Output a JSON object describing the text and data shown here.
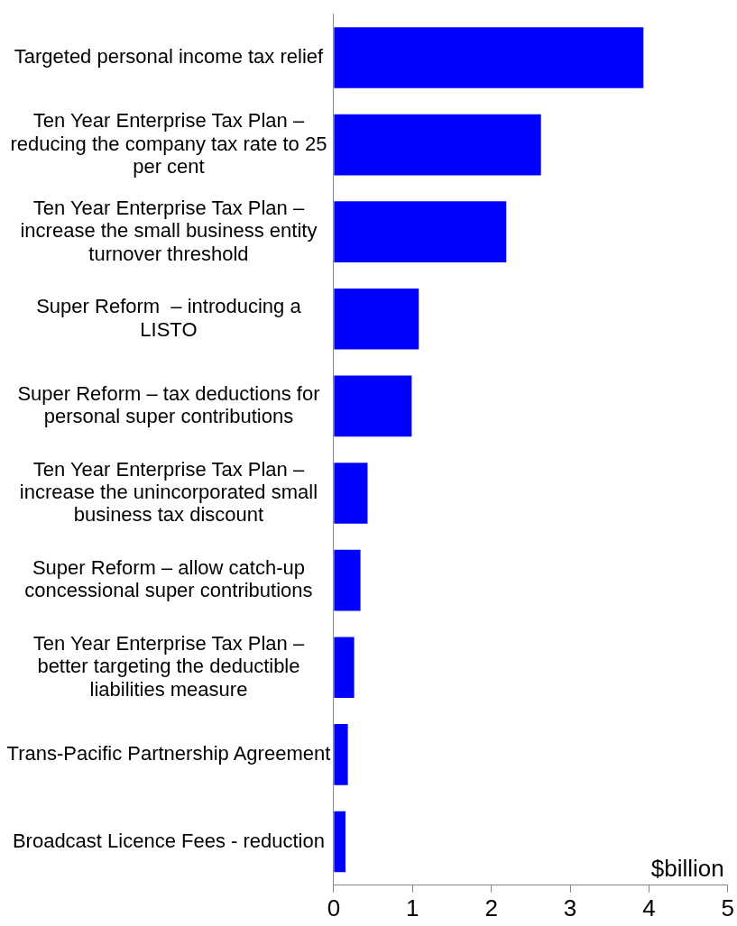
{
  "chart_data": {
    "type": "bar",
    "orientation": "horizontal",
    "xlabel": "$billion",
    "categories": [
      "Targeted personal income tax relief",
      "Ten Year Enterprise Tax Plan – reducing the company tax rate to 25 per cent",
      "Ten Year Enterprise Tax Plan – increase the small business entity turnover threshold",
      "Super Reform  – introducing a LISTO",
      "Super Reform – tax deductions for personal super contributions",
      "Ten Year Enterprise Tax Plan – increase the unincorporated small business tax discount",
      "Super Reform – allow catch-up concessional super contributions",
      "Ten Year Enterprise Tax Plan – better targeting the deductible liabilities measure",
      "Trans-Pacific Partnership Agreement",
      "Broadcast Licence Fees - reduction"
    ],
    "values": [
      3.93,
      2.63,
      2.19,
      1.08,
      0.99,
      0.43,
      0.34,
      0.26,
      0.18,
      0.15
    ],
    "color": "#0000ff",
    "xlim": [
      0,
      5
    ],
    "xticks": [
      0,
      1,
      2,
      3,
      4,
      5
    ],
    "grid": false,
    "legend": false
  }
}
